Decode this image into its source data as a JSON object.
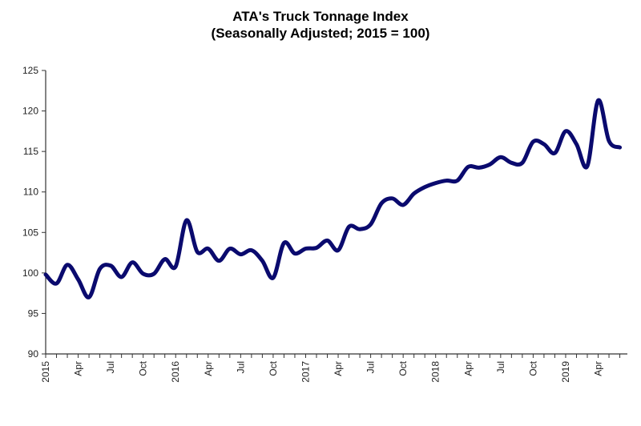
{
  "chart_data": {
    "type": "line",
    "title": "ATA's Truck Tonnage Index",
    "subtitle": "(Seasonally Adjusted; 2015 = 100)",
    "xlabel": "",
    "ylabel": "",
    "ylim": [
      90,
      125
    ],
    "yticks": [
      90,
      95,
      100,
      105,
      110,
      115,
      120,
      125
    ],
    "grid": false,
    "legend": "none",
    "line_color": "#0a0a6e",
    "x_start": "2015-01",
    "xtick_labels": [
      "2015",
      "Apr",
      "Jul",
      "Oct",
      "2016",
      "Apr",
      "Jul",
      "Oct",
      "2017",
      "Apr",
      "Jul",
      "Oct",
      "2018",
      "Apr",
      "Jul",
      "Oct",
      "2019",
      "Apr"
    ],
    "x": [
      "2015-01",
      "2015-02",
      "2015-03",
      "2015-04",
      "2015-05",
      "2015-06",
      "2015-07",
      "2015-08",
      "2015-09",
      "2015-10",
      "2015-11",
      "2015-12",
      "2016-01",
      "2016-02",
      "2016-03",
      "2016-04",
      "2016-05",
      "2016-06",
      "2016-07",
      "2016-08",
      "2016-09",
      "2016-10",
      "2016-11",
      "2016-12",
      "2017-01",
      "2017-02",
      "2017-03",
      "2017-04",
      "2017-05",
      "2017-06",
      "2017-07",
      "2017-08",
      "2017-09",
      "2017-10",
      "2017-11",
      "2017-12",
      "2018-01",
      "2018-02",
      "2018-03",
      "2018-04",
      "2018-05",
      "2018-06",
      "2018-07",
      "2018-08",
      "2018-09",
      "2018-10",
      "2018-11",
      "2018-12",
      "2019-01",
      "2019-02",
      "2019-03",
      "2019-04",
      "2019-05",
      "2019-06"
    ],
    "values": [
      99.8,
      98.7,
      101.0,
      99.2,
      97.0,
      100.5,
      100.9,
      99.5,
      101.3,
      99.9,
      99.9,
      101.7,
      100.8,
      106.5,
      102.6,
      103.0,
      101.5,
      103.0,
      102.3,
      102.8,
      101.5,
      99.4,
      103.7,
      102.4,
      103.0,
      103.1,
      104.0,
      102.8,
      105.7,
      105.4,
      106.0,
      108.6,
      109.2,
      108.4,
      109.8,
      110.6,
      111.1,
      111.4,
      111.4,
      113.1,
      113.0,
      113.4,
      114.3,
      113.6,
      113.6,
      116.2,
      115.9,
      114.8,
      117.5,
      115.9,
      113.2,
      121.3,
      116.3,
      115.5
    ]
  }
}
